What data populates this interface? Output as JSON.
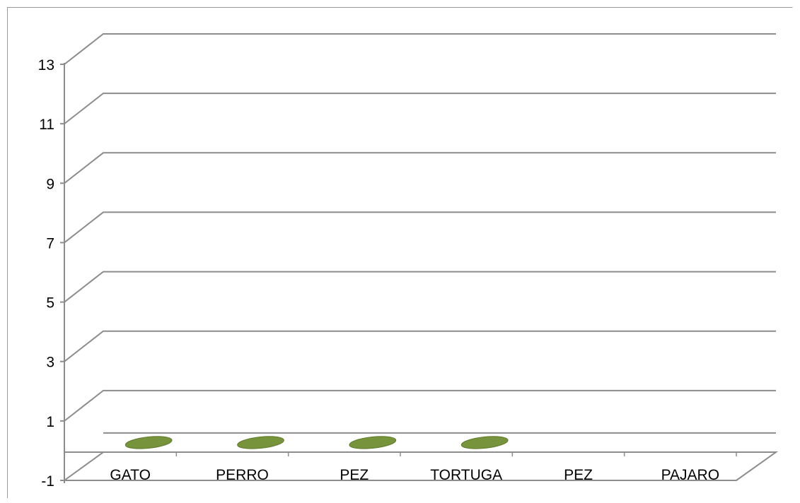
{
  "chart_data": {
    "type": "bar",
    "style": "3d",
    "categories": [
      "GATO",
      "PERRO",
      "PEZ",
      "TORTUGA",
      "PEZ",
      "PAJARO"
    ],
    "series": [
      {
        "values": [
          0,
          0,
          0,
          0,
          null,
          null
        ]
      }
    ],
    "yticks": [
      -1,
      1,
      3,
      5,
      7,
      9,
      11,
      13
    ],
    "ylim": [
      -1,
      14
    ],
    "grid": true,
    "legend": "none",
    "colors": {
      "series": "#77933c",
      "series_stroke": "#5f7a2c",
      "grid": "#8c8c8c",
      "frame": "#9a9a9a"
    }
  }
}
